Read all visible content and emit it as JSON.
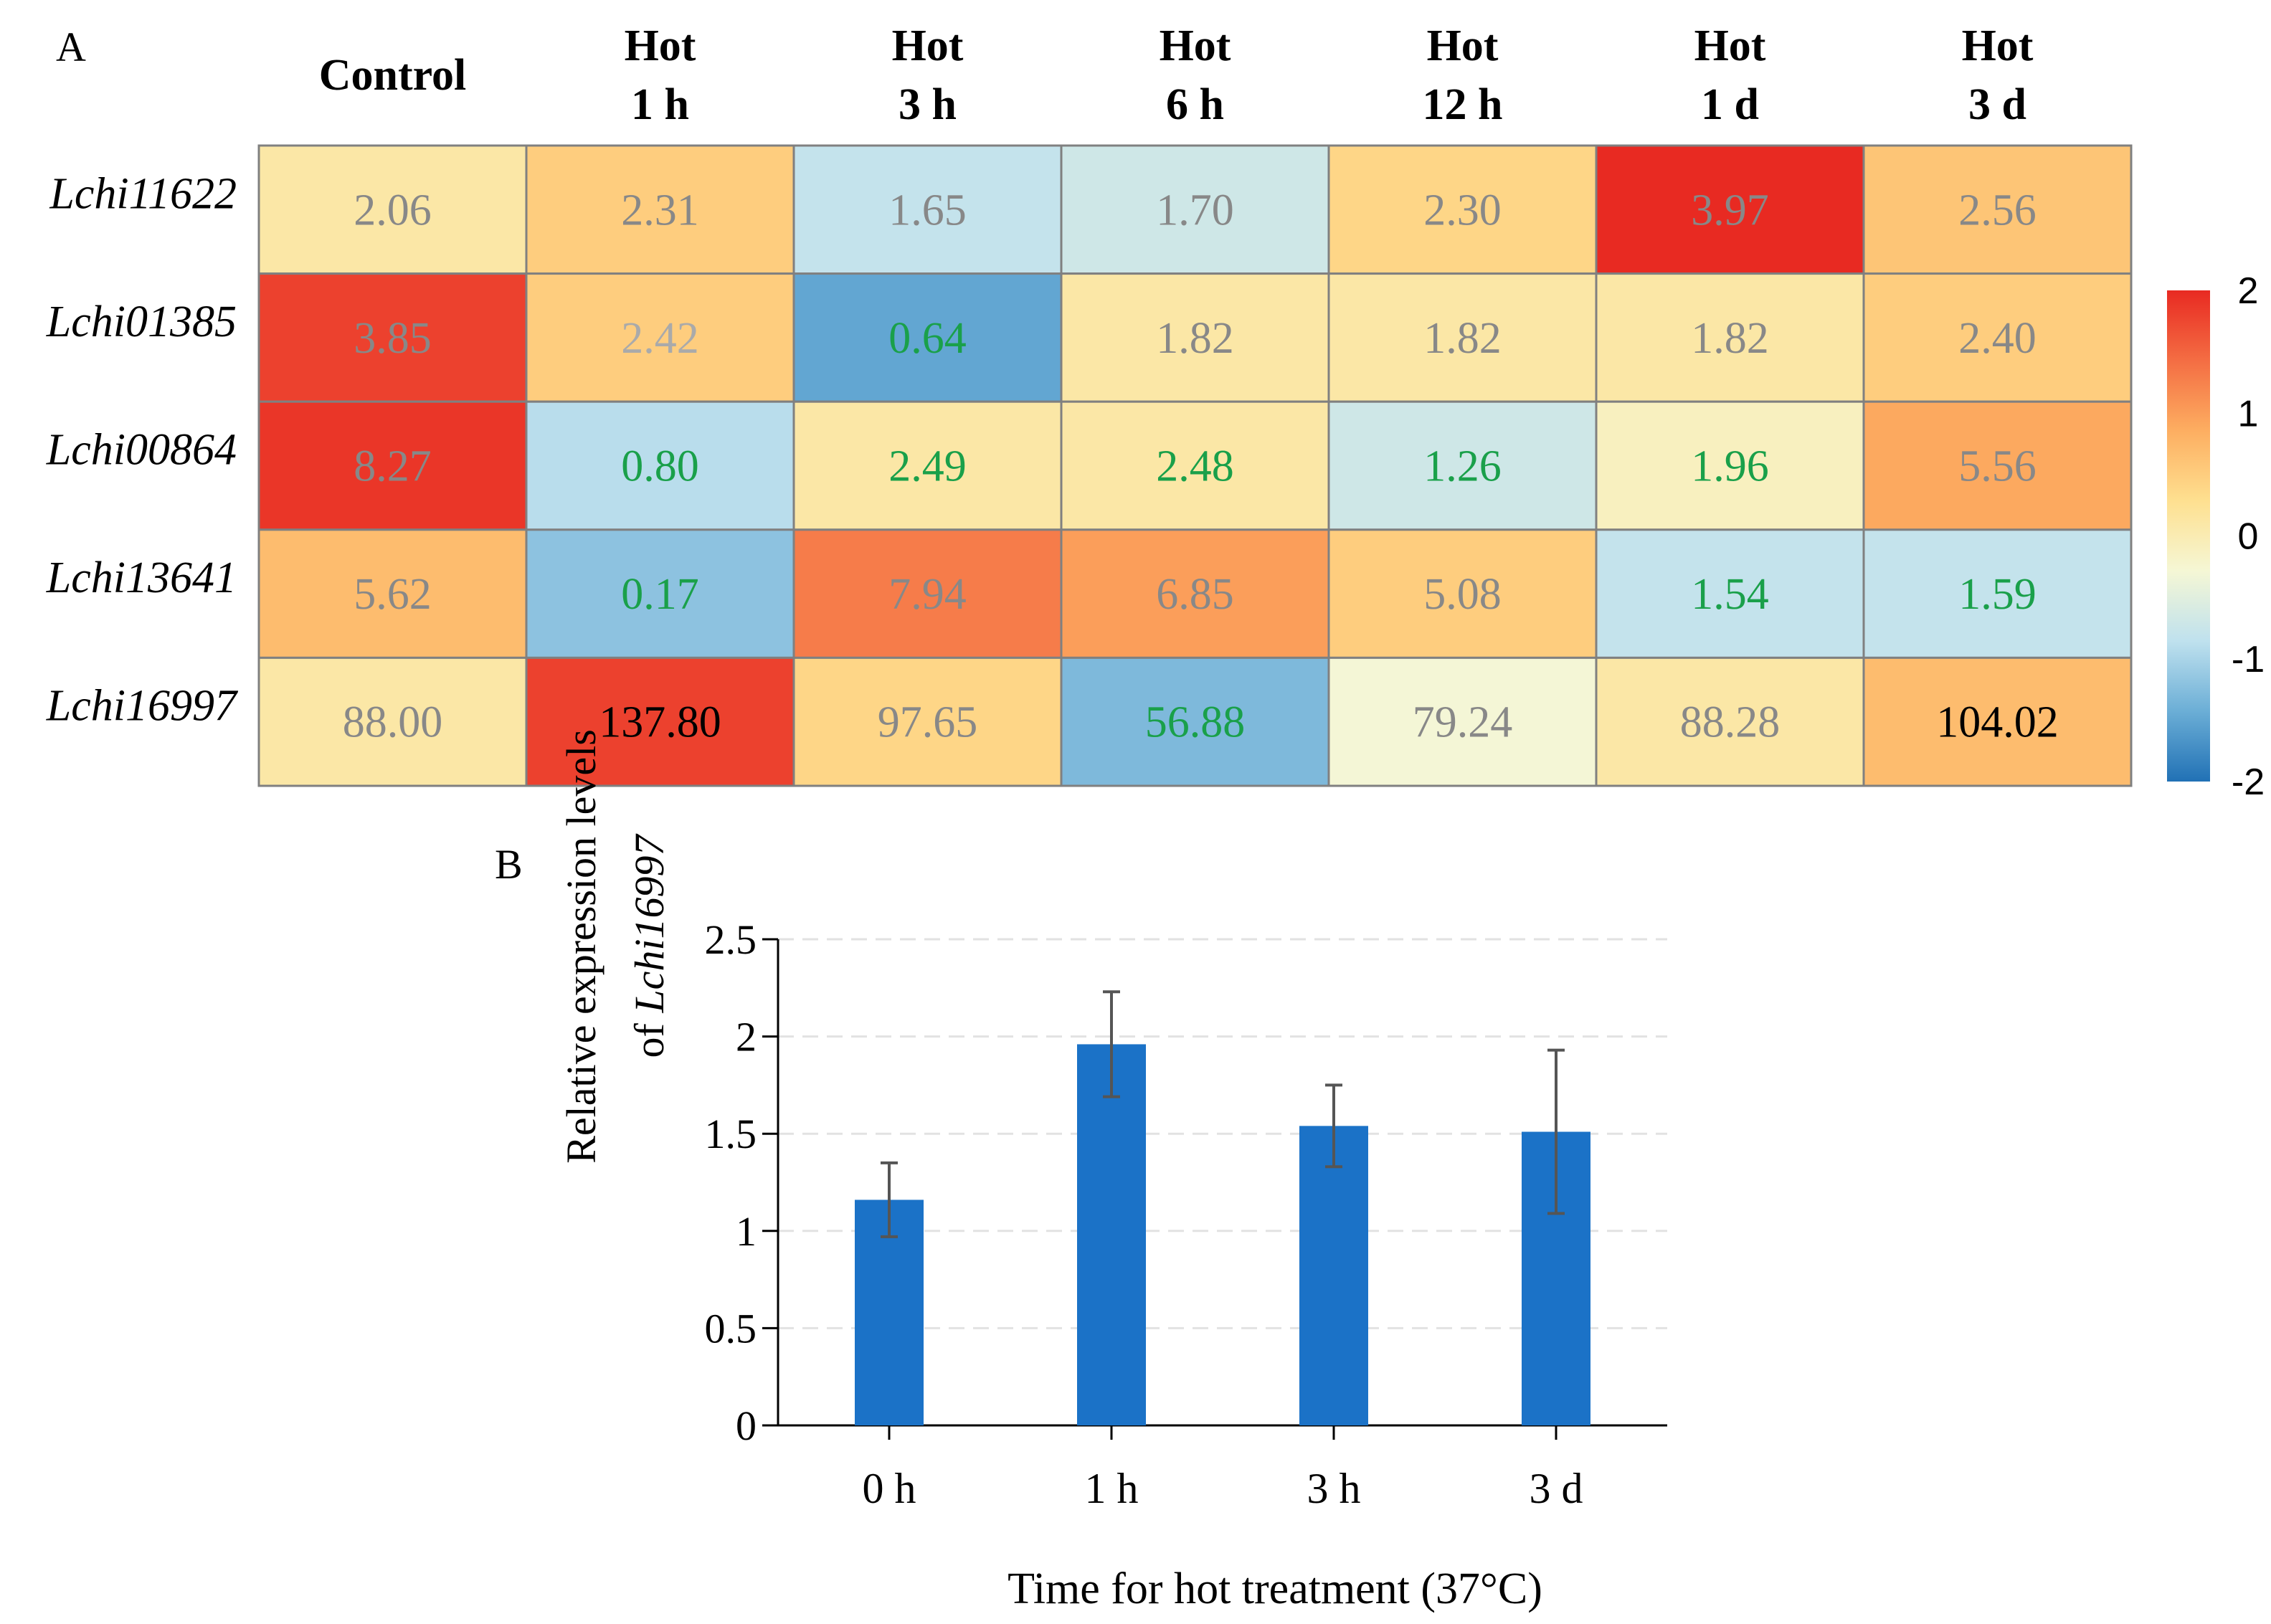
{
  "chart_data": [
    {
      "type": "heatmap",
      "panel_label": "A",
      "columns": [
        {
          "line1": "Control",
          "line2": ""
        },
        {
          "line1": "Hot",
          "line2": "1 h"
        },
        {
          "line1": "Hot",
          "line2": "3 h"
        },
        {
          "line1": "Hot",
          "line2": "6 h"
        },
        {
          "line1": "Hot",
          "line2": "12 h"
        },
        {
          "line1": "Hot",
          "line2": "1 d"
        },
        {
          "line1": "Hot",
          "line2": "3 d"
        }
      ],
      "rows": [
        {
          "gene": "Lchi11622",
          "values": [
            "2.06",
            "2.31",
            "1.65",
            "1.70",
            "2.30",
            "3.97",
            "2.56"
          ],
          "scores": [
            0.1,
            0.5,
            -0.8,
            -0.7,
            0.4,
            2.0,
            0.6
          ],
          "text_colors": [
            "#888888",
            "#888888",
            "#888888",
            "#888888",
            "#888888",
            "#888888",
            "#888888"
          ]
        },
        {
          "gene": "Lchi01385",
          "values": [
            "3.85",
            "2.42",
            "0.64",
            "1.82",
            "1.82",
            "1.82",
            "2.40"
          ],
          "scores": [
            1.8,
            0.5,
            -1.5,
            0.1,
            0.1,
            0.1,
            0.5
          ],
          "text_colors": [
            "#888888",
            "#aaaaaa",
            "#1aa04a",
            "#888888",
            "#888888",
            "#888888",
            "#888888"
          ]
        },
        {
          "gene": "Lchi00864",
          "values": [
            "8.27",
            "0.80",
            "2.49",
            "2.48",
            "1.26",
            "1.96",
            "5.56"
          ],
          "scores": [
            1.9,
            -0.9,
            0.1,
            0.1,
            -0.7,
            -0.1,
            0.9
          ],
          "text_colors": [
            "#888888",
            "#1aa04a",
            "#1aa04a",
            "#1aa04a",
            "#1aa04a",
            "#1aa04a",
            "#888888"
          ]
        },
        {
          "gene": "Lchi13641",
          "values": [
            "5.62",
            "0.17",
            "7.94",
            "6.85",
            "5.08",
            "1.54",
            "1.59"
          ],
          "scores": [
            0.7,
            -1.2,
            1.3,
            1.0,
            0.5,
            -0.8,
            -0.8
          ],
          "text_colors": [
            "#888888",
            "#1aa04a",
            "#888888",
            "#888888",
            "#888888",
            "#1aa04a",
            "#1aa04a"
          ]
        },
        {
          "gene": "Lchi16997",
          "values": [
            "88.00",
            "137.80",
            "97.65",
            "56.88",
            "79.24",
            "88.28",
            "104.02"
          ],
          "scores": [
            0.1,
            1.8,
            0.4,
            -1.3,
            -0.3,
            0.1,
            0.7
          ],
          "text_colors": [
            "#888888",
            "#000000",
            "#888888",
            "#1aa04a",
            "#888888",
            "#888888",
            "#000000"
          ]
        }
      ],
      "colorbar": {
        "min": -2,
        "max": 2,
        "ticks": [
          "2",
          "1",
          "0",
          "-1",
          "-2"
        ],
        "colors": [
          "#2171b5",
          "#6baed6",
          "#bfe1ee",
          "#f5f7d5",
          "#fee090",
          "#fdae61",
          "#f46d43",
          "#e82a22"
        ]
      }
    },
    {
      "type": "bar",
      "panel_label": "B",
      "categories": [
        "0 h",
        "1 h",
        "3 h",
        "3 d"
      ],
      "values": [
        1.16,
        1.96,
        1.54,
        1.51
      ],
      "errors": [
        0.19,
        0.27,
        0.21,
        0.42
      ],
      "ylim": [
        0,
        2.5
      ],
      "yticks": [
        "0",
        "0.5",
        "1",
        "1.5",
        "2",
        "2.5"
      ],
      "ylabel_line1": "Relative expression levels",
      "ylabel_line2_prefix": "of ",
      "ylabel_line2_gene": "Lchi16997",
      "xlabel": "Time for hot treatment (37°C)",
      "bar_color": "#1b72c7",
      "error_color": "#555555"
    }
  ]
}
